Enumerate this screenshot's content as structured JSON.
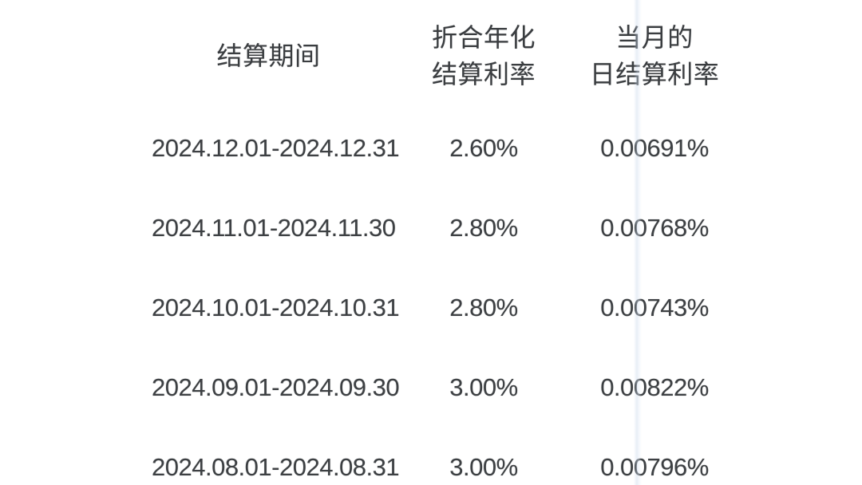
{
  "page": {
    "background_color": "#ffffff",
    "text_color": "#3d4043",
    "crease_tint": "#c4d3e8"
  },
  "table": {
    "columns": [
      {
        "id": "period",
        "label_lines": [
          "结算期间"
        ]
      },
      {
        "id": "annualized_rate",
        "label_lines": [
          "折合年化",
          "结算利率"
        ]
      },
      {
        "id": "daily_rate",
        "label_lines": [
          "当月的",
          "日结算利率"
        ]
      }
    ],
    "rows": [
      {
        "period": "2024.12.01-2024.12.31",
        "annualized": "2.60%",
        "daily": "0.00691%"
      },
      {
        "period": "2024.11.01-2024.11.30",
        "annualized": "2.80%",
        "daily": "0.00768%"
      },
      {
        "period": "2024.10.01-2024.10.31",
        "annualized": "2.80%",
        "daily": "0.00743%"
      },
      {
        "period": "2024.09.01-2024.09.30",
        "annualized": "3.00%",
        "daily": "0.00822%"
      },
      {
        "period": "2024.08.01-2024.08.31",
        "annualized": "3.00%",
        "daily": "0.00796%"
      }
    ]
  },
  "chart_data": {
    "type": "table",
    "title": "",
    "columns": [
      "结算期间",
      "折合年化结算利率",
      "当月的日结算利率"
    ],
    "rows": [
      [
        "2024.12.01-2024.12.31",
        "2.60%",
        "0.00691%"
      ],
      [
        "2024.11.01-2024.11.30",
        "2.80%",
        "0.00768%"
      ],
      [
        "2024.10.01-2024.10.31",
        "2.80%",
        "0.00743%"
      ],
      [
        "2024.09.01-2024.09.30",
        "3.00%",
        "0.00822%"
      ],
      [
        "2024.08.01-2024.08.31",
        "3.00%",
        "0.00796%"
      ]
    ],
    "annualized_rate_values_pct": [
      2.6,
      2.8,
      2.8,
      3.0,
      3.0
    ],
    "daily_rate_values_pct": [
      0.00691,
      0.00768,
      0.00743,
      0.00822,
      0.00796
    ]
  }
}
